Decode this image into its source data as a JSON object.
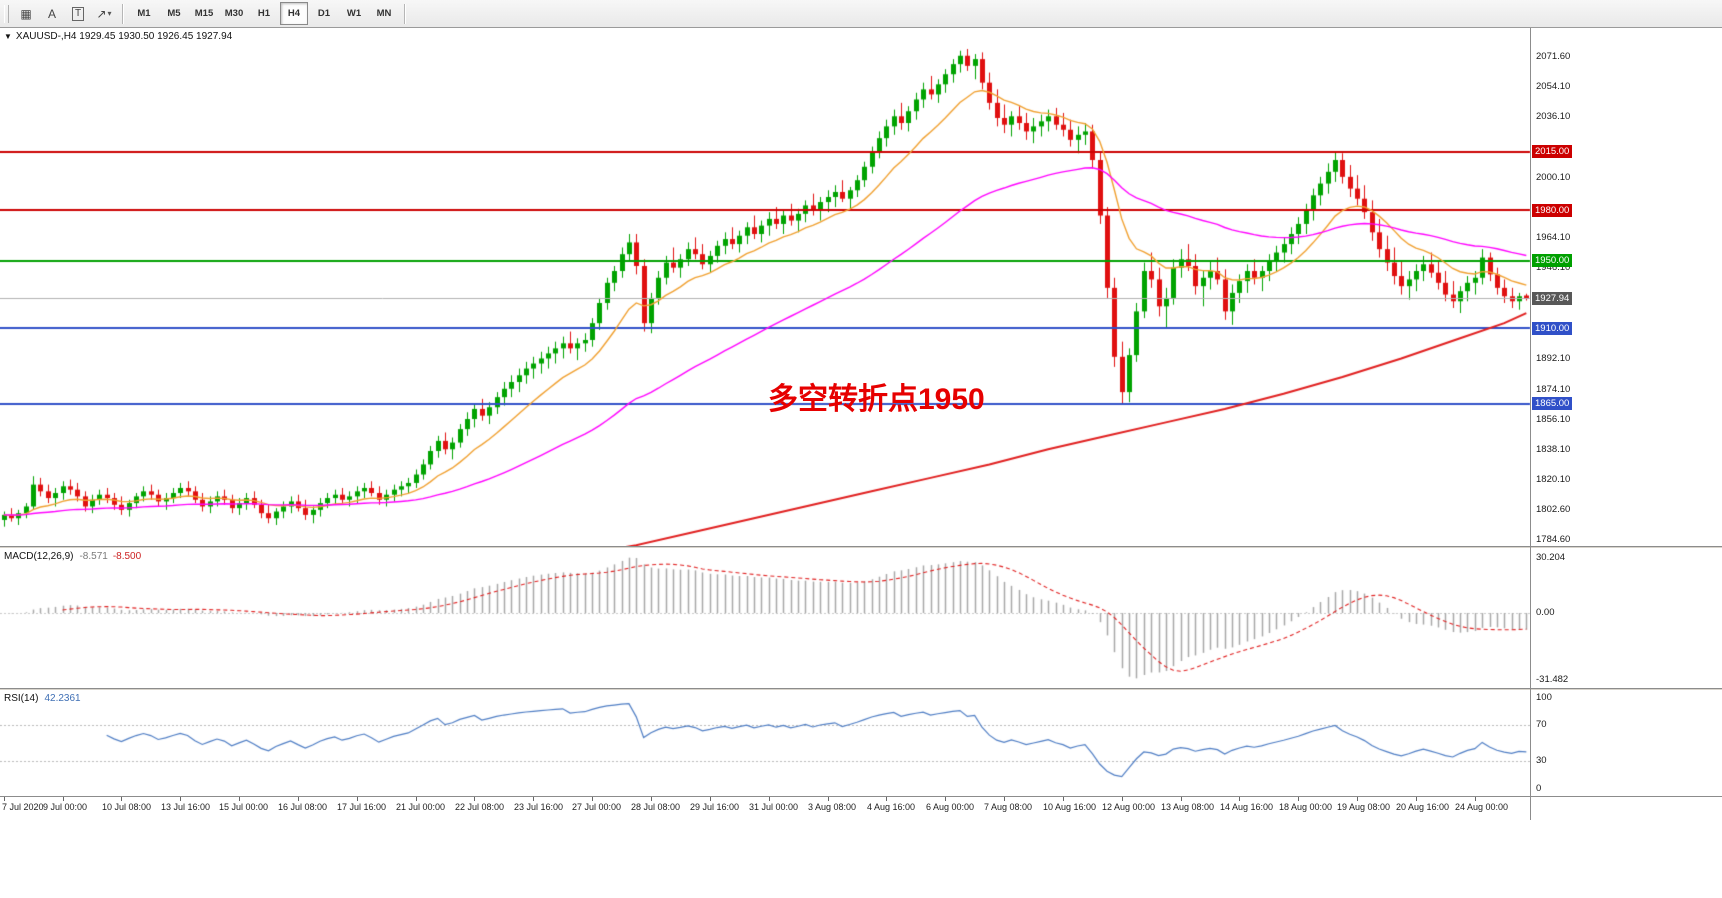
{
  "toolbar": {
    "left_buttons": [
      {
        "name": "new-chart-button",
        "glyph": "▦"
      },
      {
        "name": "text-label-button",
        "glyph": "A"
      },
      {
        "name": "text-frame-button",
        "glyph": "T"
      },
      {
        "name": "arrow-tools-dropdown",
        "glyph": "↗",
        "caret": "▾"
      }
    ],
    "timeframes": [
      "M1",
      "M5",
      "M15",
      "M30",
      "H1",
      "H4",
      "D1",
      "W1",
      "MN"
    ],
    "active_timeframe": "H4"
  },
  "chart": {
    "caret": "▼",
    "symbol_line": "XAUUSD-,H4  1929.45 1930.50 1926.45 1927.94",
    "annotation": "多空转折点1950",
    "current_price": "1927.94",
    "price_ticks": [
      "2071.60",
      "2054.10",
      "2036.10",
      "2000.10",
      "1964.10",
      "1946.10",
      "1892.10",
      "1874.10",
      "1856.10",
      "1838.10",
      "1820.10",
      "1802.60",
      "1784.60"
    ]
  },
  "macd": {
    "title": "MACD(12,26,9)",
    "value_main": "-8.571",
    "value_signal": "-8.500",
    "ticks": [
      "30.204",
      "0.00",
      "-31.482"
    ]
  },
  "rsi": {
    "title": "RSI(14)",
    "value": "42.2361",
    "ticks": [
      "100",
      "70",
      "30",
      "0"
    ],
    "levels": [
      70,
      30
    ]
  },
  "chart_data": {
    "type": "candlestick",
    "title": "XAUUSD H4 with MACD(12,26,9) and RSI(14)",
    "symbol": "XAUUSD-",
    "timeframe": "H4",
    "price_range": [
      1780.5,
      2088.5
    ],
    "colors": {
      "up": "#00a300",
      "down": "#e01010"
    },
    "ma_fast_color": "#f0a030",
    "ma_mid_color": "#ff00ff",
    "ma_slow_color": "#e02020",
    "macd_bar_color": "#a8a8a8",
    "macd_signal_color": "#e02020",
    "rsi_line_color": "#4e7dc4",
    "bid_line": {
      "price": 1927.94,
      "color": "#b0b0b0",
      "label": "1927.94",
      "badge": "#585858"
    },
    "horizontal_lines": [
      {
        "price": 2015.0,
        "color": "#cc0000",
        "label": "2015.00"
      },
      {
        "price": 1980.0,
        "color": "#cc0000",
        "label": "1980.00"
      },
      {
        "price": 1950.0,
        "color": "#00a000",
        "label": "1950.00"
      },
      {
        "price": 1910.0,
        "color": "#3050c8",
        "label": "1910.00"
      },
      {
        "price": 1865.0,
        "color": "#3050c8",
        "label": "1865.00"
      }
    ],
    "ma_slow_points": [
      [
        70,
        1769
      ],
      [
        78,
        1775
      ],
      [
        86,
        1781
      ],
      [
        94,
        1789
      ],
      [
        102,
        1797
      ],
      [
        110,
        1805
      ],
      [
        118,
        1813
      ],
      [
        126,
        1821
      ],
      [
        134,
        1829
      ],
      [
        142,
        1838
      ],
      [
        150,
        1846
      ],
      [
        158,
        1854
      ],
      [
        166,
        1862
      ],
      [
        174,
        1871
      ],
      [
        182,
        1881
      ],
      [
        190,
        1892
      ],
      [
        198,
        1904
      ],
      [
        204,
        1913
      ],
      [
        207,
        1919
      ]
    ],
    "time_labels": [
      "7 Jul 2020",
      "9 Jul 00:00",
      "10 Jul 08:00",
      "13 Jul 16:00",
      "15 Jul 00:00",
      "16 Jul 08:00",
      "17 Jul 16:00",
      "21 Jul 00:00",
      "22 Jul 08:00",
      "23 Jul 16:00",
      "27 Jul 00:00",
      "28 Jul 08:00",
      "29 Jul 16:00",
      "31 Jul 00:00",
      "3 Aug 08:00",
      "4 Aug 16:00",
      "6 Aug 00:00",
      "7 Aug 08:00",
      "10 Aug 16:00",
      "12 Aug 00:00",
      "13 Aug 08:00",
      "14 Aug 16:00",
      "18 Aug 00:00",
      "19 Aug 08:00",
      "20 Aug 16:00",
      "24 Aug 00:00"
    ],
    "bars_per_label": 8,
    "ohlc": [
      [
        1796,
        1801,
        1792,
        1799
      ],
      [
        1799,
        1803,
        1795,
        1797
      ],
      [
        1797,
        1802,
        1793,
        1800
      ],
      [
        1800,
        1806,
        1797,
        1804
      ],
      [
        1804,
        1822,
        1802,
        1817
      ],
      [
        1817,
        1821,
        1810,
        1813
      ],
      [
        1813,
        1817,
        1806,
        1809
      ],
      [
        1809,
        1815,
        1804,
        1812
      ],
      [
        1812,
        1819,
        1808,
        1816
      ],
      [
        1816,
        1820,
        1811,
        1814
      ],
      [
        1814,
        1818,
        1807,
        1810
      ],
      [
        1810,
        1813,
        1801,
        1804
      ],
      [
        1804,
        1811,
        1800,
        1808
      ],
      [
        1808,
        1814,
        1805,
        1811
      ],
      [
        1811,
        1815,
        1806,
        1809
      ],
      [
        1809,
        1812,
        1802,
        1805
      ],
      [
        1805,
        1810,
        1799,
        1802
      ],
      [
        1802,
        1808,
        1798,
        1806
      ],
      [
        1806,
        1812,
        1803,
        1810
      ],
      [
        1810,
        1816,
        1807,
        1813
      ],
      [
        1813,
        1817,
        1808,
        1811
      ],
      [
        1811,
        1814,
        1804,
        1807
      ],
      [
        1807,
        1812,
        1802,
        1809
      ],
      [
        1809,
        1815,
        1806,
        1812
      ],
      [
        1812,
        1818,
        1809,
        1815
      ],
      [
        1815,
        1819,
        1810,
        1813
      ],
      [
        1813,
        1816,
        1806,
        1808
      ],
      [
        1808,
        1812,
        1801,
        1804
      ],
      [
        1804,
        1810,
        1800,
        1807
      ],
      [
        1807,
        1813,
        1804,
        1810
      ],
      [
        1810,
        1814,
        1805,
        1808
      ],
      [
        1808,
        1811,
        1800,
        1803
      ],
      [
        1803,
        1809,
        1799,
        1806
      ],
      [
        1806,
        1812,
        1802,
        1809
      ],
      [
        1809,
        1813,
        1803,
        1805
      ],
      [
        1805,
        1808,
        1797,
        1800
      ],
      [
        1800,
        1805,
        1794,
        1797
      ],
      [
        1797,
        1803,
        1793,
        1801
      ],
      [
        1801,
        1807,
        1797,
        1804
      ],
      [
        1804,
        1810,
        1800,
        1807
      ],
      [
        1807,
        1811,
        1801,
        1803
      ],
      [
        1803,
        1808,
        1796,
        1799
      ],
      [
        1799,
        1804,
        1794,
        1802
      ],
      [
        1802,
        1809,
        1798,
        1806
      ],
      [
        1806,
        1812,
        1803,
        1809
      ],
      [
        1809,
        1814,
        1805,
        1811
      ],
      [
        1811,
        1815,
        1806,
        1808
      ],
      [
        1808,
        1813,
        1804,
        1810
      ],
      [
        1810,
        1816,
        1806,
        1813
      ],
      [
        1813,
        1818,
        1809,
        1815
      ],
      [
        1815,
        1819,
        1810,
        1812
      ],
      [
        1812,
        1816,
        1805,
        1808
      ],
      [
        1808,
        1814,
        1804,
        1811
      ],
      [
        1811,
        1817,
        1807,
        1814
      ],
      [
        1814,
        1819,
        1810,
        1816
      ],
      [
        1816,
        1821,
        1812,
        1818
      ],
      [
        1818,
        1826,
        1815,
        1823
      ],
      [
        1823,
        1832,
        1820,
        1829
      ],
      [
        1829,
        1840,
        1826,
        1837
      ],
      [
        1837,
        1846,
        1833,
        1843
      ],
      [
        1843,
        1848,
        1835,
        1838
      ],
      [
        1838,
        1845,
        1832,
        1842
      ],
      [
        1842,
        1853,
        1839,
        1850
      ],
      [
        1850,
        1860,
        1846,
        1856
      ],
      [
        1856,
        1865,
        1851,
        1862
      ],
      [
        1862,
        1868,
        1855,
        1858
      ],
      [
        1858,
        1866,
        1853,
        1863
      ],
      [
        1863,
        1872,
        1859,
        1869
      ],
      [
        1869,
        1878,
        1864,
        1874
      ],
      [
        1874,
        1882,
        1869,
        1878
      ],
      [
        1878,
        1886,
        1872,
        1882
      ],
      [
        1882,
        1890,
        1877,
        1886
      ],
      [
        1886,
        1893,
        1880,
        1889
      ],
      [
        1889,
        1896,
        1883,
        1892
      ],
      [
        1892,
        1899,
        1886,
        1895
      ],
      [
        1895,
        1902,
        1889,
        1898
      ],
      [
        1898,
        1905,
        1892,
        1901
      ],
      [
        1901,
        1908,
        1895,
        1898
      ],
      [
        1898,
        1904,
        1891,
        1901
      ],
      [
        1901,
        1907,
        1896,
        1903
      ],
      [
        1903,
        1916,
        1899,
        1913
      ],
      [
        1913,
        1928,
        1909,
        1925
      ],
      [
        1925,
        1940,
        1921,
        1937
      ],
      [
        1937,
        1947,
        1932,
        1944
      ],
      [
        1944,
        1958,
        1940,
        1954
      ],
      [
        1954,
        1966,
        1950,
        1961
      ],
      [
        1961,
        1966,
        1942,
        1947
      ],
      [
        1947,
        1951,
        1908,
        1913
      ],
      [
        1913,
        1931,
        1907,
        1928
      ],
      [
        1928,
        1944,
        1924,
        1940
      ],
      [
        1940,
        1953,
        1936,
        1949
      ],
      [
        1949,
        1958,
        1943,
        1946
      ],
      [
        1946,
        1954,
        1940,
        1951
      ],
      [
        1951,
        1961,
        1947,
        1957
      ],
      [
        1957,
        1964,
        1951,
        1954
      ],
      [
        1954,
        1960,
        1945,
        1948
      ],
      [
        1948,
        1956,
        1943,
        1953
      ],
      [
        1953,
        1962,
        1949,
        1959
      ],
      [
        1959,
        1967,
        1954,
        1963
      ],
      [
        1963,
        1970,
        1957,
        1960
      ],
      [
        1960,
        1968,
        1955,
        1965
      ],
      [
        1965,
        1973,
        1960,
        1970
      ],
      [
        1970,
        1977,
        1963,
        1966
      ],
      [
        1966,
        1974,
        1961,
        1971
      ],
      [
        1971,
        1979,
        1965,
        1975
      ],
      [
        1975,
        1982,
        1969,
        1972
      ],
      [
        1972,
        1980,
        1966,
        1977
      ],
      [
        1977,
        1984,
        1971,
        1974
      ],
      [
        1974,
        1981,
        1967,
        1978
      ],
      [
        1978,
        1986,
        1973,
        1983
      ],
      [
        1983,
        1990,
        1977,
        1980
      ],
      [
        1980,
        1988,
        1974,
        1985
      ],
      [
        1985,
        1992,
        1979,
        1988
      ],
      [
        1988,
        1995,
        1982,
        1991
      ],
      [
        1991,
        1998,
        1985,
        1987
      ],
      [
        1987,
        1994,
        1981,
        1992
      ],
      [
        1992,
        2001,
        1988,
        1998
      ],
      [
        1998,
        2009,
        1994,
        2006
      ],
      [
        2006,
        2018,
        2002,
        2015
      ],
      [
        2015,
        2027,
        2011,
        2023
      ],
      [
        2023,
        2034,
        2018,
        2030
      ],
      [
        2030,
        2040,
        2025,
        2036
      ],
      [
        2036,
        2044,
        2028,
        2032
      ],
      [
        2032,
        2042,
        2027,
        2039
      ],
      [
        2039,
        2050,
        2034,
        2046
      ],
      [
        2046,
        2056,
        2041,
        2052
      ],
      [
        2052,
        2060,
        2046,
        2049
      ],
      [
        2049,
        2058,
        2044,
        2055
      ],
      [
        2055,
        2064,
        2050,
        2061
      ],
      [
        2061,
        2070,
        2056,
        2067
      ],
      [
        2067,
        2075,
        2062,
        2072
      ],
      [
        2072,
        2076,
        2063,
        2066
      ],
      [
        2066,
        2073,
        2058,
        2070
      ],
      [
        2070,
        2074,
        2052,
        2056
      ],
      [
        2056,
        2062,
        2040,
        2044
      ],
      [
        2044,
        2052,
        2030,
        2035
      ],
      [
        2035,
        2043,
        2026,
        2031
      ],
      [
        2031,
        2039,
        2024,
        2036
      ],
      [
        2036,
        2042,
        2028,
        2032
      ],
      [
        2032,
        2038,
        2022,
        2027
      ],
      [
        2027,
        2035,
        2020,
        2030
      ],
      [
        2030,
        2037,
        2024,
        2033
      ],
      [
        2033,
        2040,
        2027,
        2036
      ],
      [
        2036,
        2041,
        2028,
        2031
      ],
      [
        2031,
        2038,
        2024,
        2028
      ],
      [
        2028,
        2034,
        2018,
        2022
      ],
      [
        2022,
        2030,
        2014,
        2025
      ],
      [
        2025,
        2032,
        2019,
        2027
      ],
      [
        2027,
        2031,
        2005,
        2010
      ],
      [
        2010,
        2015,
        1972,
        1977
      ],
      [
        1977,
        1982,
        1928,
        1934
      ],
      [
        1934,
        1940,
        1887,
        1893
      ],
      [
        1893,
        1902,
        1865,
        1872
      ],
      [
        1872,
        1898,
        1866,
        1894
      ],
      [
        1894,
        1925,
        1890,
        1920
      ],
      [
        1920,
        1949,
        1916,
        1944
      ],
      [
        1944,
        1955,
        1934,
        1939
      ],
      [
        1939,
        1946,
        1917,
        1923
      ],
      [
        1923,
        1934,
        1910,
        1928
      ],
      [
        1928,
        1951,
        1924,
        1946
      ],
      [
        1946,
        1957,
        1940,
        1951
      ],
      [
        1951,
        1960,
        1944,
        1947
      ],
      [
        1947,
        1954,
        1930,
        1935
      ],
      [
        1935,
        1944,
        1923,
        1940
      ],
      [
        1940,
        1950,
        1933,
        1944
      ],
      [
        1944,
        1952,
        1936,
        1939
      ],
      [
        1939,
        1945,
        1915,
        1920
      ],
      [
        1920,
        1936,
        1912,
        1931
      ],
      [
        1931,
        1942,
        1925,
        1938
      ],
      [
        1938,
        1948,
        1931,
        1944
      ],
      [
        1944,
        1951,
        1936,
        1940
      ],
      [
        1940,
        1947,
        1932,
        1944
      ],
      [
        1944,
        1954,
        1938,
        1950
      ],
      [
        1950,
        1959,
        1944,
        1955
      ],
      [
        1955,
        1964,
        1949,
        1960
      ],
      [
        1960,
        1970,
        1954,
        1966
      ],
      [
        1966,
        1976,
        1960,
        1972
      ],
      [
        1972,
        1984,
        1966,
        1980
      ],
      [
        1980,
        1993,
        1974,
        1989
      ],
      [
        1989,
        2000,
        1983,
        1996
      ],
      [
        1996,
        2008,
        1990,
        2003
      ],
      [
        2003,
        2015,
        1997,
        2010
      ],
      [
        2010,
        2014,
        1996,
        2000
      ],
      [
        2000,
        2007,
        1988,
        1993
      ],
      [
        1993,
        2001,
        1983,
        1987
      ],
      [
        1987,
        1995,
        1975,
        1979
      ],
      [
        1979,
        1986,
        1962,
        1967
      ],
      [
        1967,
        1975,
        1952,
        1957
      ],
      [
        1957,
        1965,
        1944,
        1949
      ],
      [
        1949,
        1958,
        1936,
        1941
      ],
      [
        1941,
        1950,
        1930,
        1935
      ],
      [
        1935,
        1944,
        1927,
        1939
      ],
      [
        1939,
        1948,
        1932,
        1944
      ],
      [
        1944,
        1953,
        1938,
        1948
      ],
      [
        1948,
        1955,
        1940,
        1943
      ],
      [
        1943,
        1950,
        1933,
        1937
      ],
      [
        1937,
        1944,
        1926,
        1930
      ],
      [
        1930,
        1938,
        1922,
        1926
      ],
      [
        1926,
        1935,
        1919,
        1932
      ],
      [
        1932,
        1941,
        1926,
        1937
      ],
      [
        1937,
        1944,
        1930,
        1940
      ],
      [
        1940,
        1957,
        1936,
        1952
      ],
      [
        1952,
        1955,
        1938,
        1942
      ],
      [
        1942,
        1946,
        1930,
        1934
      ],
      [
        1934,
        1939,
        1925,
        1929
      ],
      [
        1929,
        1934,
        1922,
        1926
      ],
      [
        1926,
        1931,
        1921,
        1929
      ],
      [
        1929.45,
        1930.5,
        1926.45,
        1927.94
      ]
    ]
  }
}
